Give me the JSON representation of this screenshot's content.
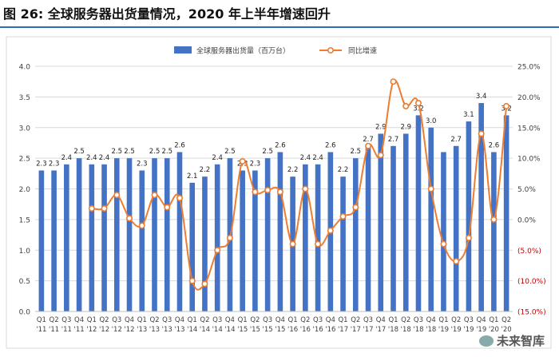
{
  "title": "图  26:  全球服务器出货量情况，2020 年上半年增速回升",
  "watermark": "未来智库",
  "chart_data": {
    "type": "bar+line",
    "categories": [
      [
        "Q1",
        "'11"
      ],
      [
        "Q2",
        "'11"
      ],
      [
        "Q3",
        "'11"
      ],
      [
        "Q4",
        "'11"
      ],
      [
        "Q1",
        "'12"
      ],
      [
        "Q2",
        "'12"
      ],
      [
        "Q3",
        "'12"
      ],
      [
        "Q4",
        "'12"
      ],
      [
        "Q1",
        "'13"
      ],
      [
        "Q2",
        "'13"
      ],
      [
        "Q3",
        "'13"
      ],
      [
        "Q4",
        "'13"
      ],
      [
        "Q1",
        "'14"
      ],
      [
        "Q2",
        "'14"
      ],
      [
        "Q3",
        "'14"
      ],
      [
        "Q4",
        "'14"
      ],
      [
        "Q1",
        "'15"
      ],
      [
        "Q2",
        "'15"
      ],
      [
        "Q3",
        "'15"
      ],
      [
        "Q4",
        "'15"
      ],
      [
        "Q1",
        "'16"
      ],
      [
        "Q2",
        "'16"
      ],
      [
        "Q3",
        "'16"
      ],
      [
        "Q4",
        "'16"
      ],
      [
        "Q1",
        "'17"
      ],
      [
        "Q2",
        "'17"
      ],
      [
        "Q3",
        "'17"
      ],
      [
        "Q4",
        "'17"
      ],
      [
        "Q1",
        "'18"
      ],
      [
        "Q2",
        "'18"
      ],
      [
        "Q3",
        "'18"
      ],
      [
        "Q4",
        "'18"
      ],
      [
        "Q1",
        "'19"
      ],
      [
        "Q2",
        "'19"
      ],
      [
        "Q3",
        "'19"
      ],
      [
        "Q4",
        "'19"
      ],
      [
        "Q1",
        "'20"
      ],
      [
        "Q2",
        "'20"
      ]
    ],
    "series": [
      {
        "name": "全球服务器出货量（百万台）",
        "type": "bar",
        "axis": "left",
        "color": "#4472c4",
        "values": [
          2.3,
          2.3,
          2.4,
          2.5,
          2.4,
          2.4,
          2.5,
          2.5,
          2.3,
          2.5,
          2.5,
          2.6,
          2.1,
          2.2,
          2.4,
          2.5,
          2.3,
          2.3,
          2.5,
          2.6,
          2.2,
          2.4,
          2.4,
          2.6,
          2.2,
          2.5,
          2.7,
          2.9,
          2.7,
          2.9,
          3.2,
          3.0,
          2.6,
          2.7,
          3.1,
          3.4,
          2.6,
          3.2
        ],
        "labels": [
          "2.3",
          "2.3",
          "2.4",
          "2.5",
          "2.4",
          "2.4",
          "2.5",
          "2.5",
          "2.3",
          "2.5",
          "2.5",
          "2.6",
          "2.1",
          "2.2",
          "2.4",
          "2.5",
          "2.3",
          "2.3",
          "2.5",
          "2.6",
          "2.2",
          "2.4",
          "2.4",
          "2.6",
          "2.2",
          "2.5",
          "2.7",
          "2.9",
          "2.7",
          "2.9",
          "3.2",
          "3.0",
          "",
          "2.7",
          "3.1",
          "3.4",
          "2.6",
          "3.2"
        ]
      },
      {
        "name": "同比增速",
        "type": "line",
        "axis": "right",
        "color": "#ed7d31",
        "values": [
          null,
          null,
          null,
          null,
          1.8,
          1.8,
          4.0,
          0.2,
          -1.0,
          4.0,
          2.0,
          3.5,
          -10.0,
          -10.5,
          -5.0,
          -3.0,
          9.5,
          4.5,
          4.8,
          4.5,
          -4.0,
          5.0,
          -4.0,
          -1.8,
          0.5,
          2.0,
          12.0,
          10.5,
          22.5,
          18.5,
          19.0,
          5.0,
          -4.0,
          -6.8,
          -3.0,
          14.0,
          0.0,
          18.5
        ]
      }
    ],
    "y_left": {
      "min": 0,
      "max": 4.0,
      "ticks": [
        "0.0",
        "0.5",
        "1.0",
        "1.5",
        "2.0",
        "2.5",
        "3.0",
        "3.5",
        "4.0"
      ]
    },
    "y_right": {
      "min": -15,
      "max": 25,
      "ticks": [
        "(15.0%)",
        "(10.0%)",
        "(5.0%)",
        "0.0%",
        "5.0%",
        "10.0%",
        "15.0%",
        "20.0%",
        "25.0%"
      ]
    },
    "grid": true,
    "legend_position": "top-center"
  }
}
